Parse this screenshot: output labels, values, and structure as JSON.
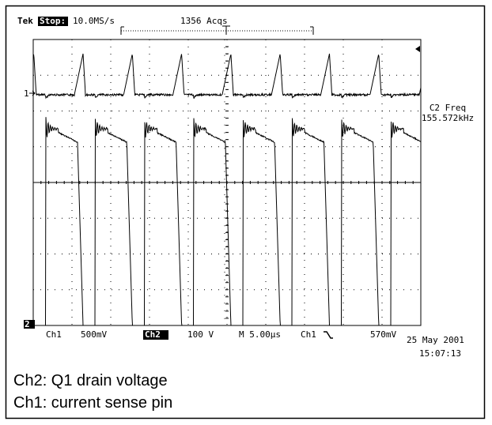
{
  "header": {
    "brand": "Tek",
    "status": "Stop:",
    "sample_rate": "10.0MS/s",
    "acquisitions": "1356 Acqs"
  },
  "readout": {
    "label": "C2 Freq",
    "value": "155.572kHz"
  },
  "markers": {
    "ch1": "1",
    "ch2": "2"
  },
  "footer": {
    "ch1_label": "Ch1",
    "ch1_scale": "500mV",
    "ch2_label": "Ch2",
    "ch2_scale": "100 V",
    "timebase": "M 5.00µs",
    "trigger_source": "Ch1",
    "trigger_level": "570mV",
    "date": "25 May 2001",
    "time": "15:07:13"
  },
  "caption": [
    "Ch2: Q1 drain voltage",
    "Ch1: current sense pin"
  ]
}
